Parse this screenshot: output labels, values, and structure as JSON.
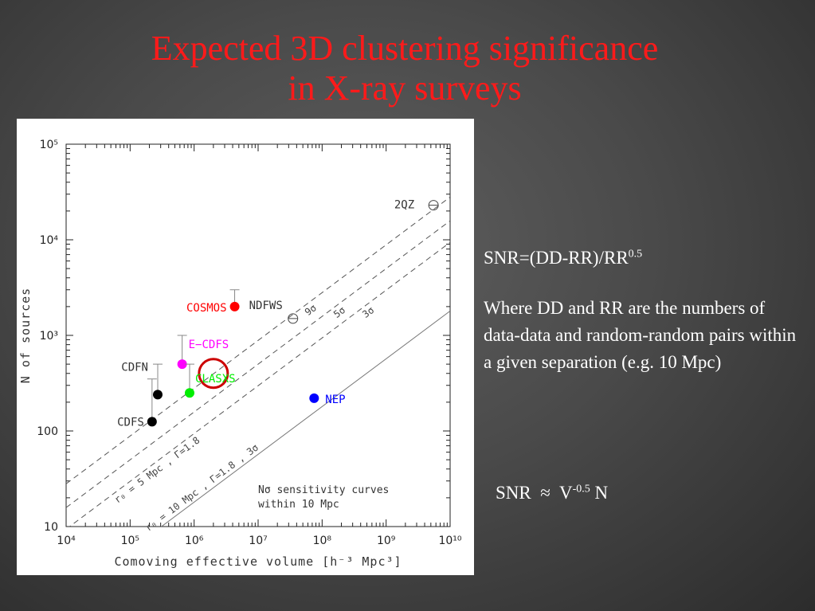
{
  "slide": {
    "title_line1": "Expected 3D clustering significance",
    "title_line2": "in X-ray surveys",
    "snr_formula_base": "SNR=(DD-RR)/RR",
    "snr_formula_exp": "0.5",
    "description": "Where DD and RR are the numbers of data-data and random-random pairs within a given separation (e.g. 10 Mpc)",
    "approx_prefix": "SNR  ≈  V",
    "approx_exp": "-0.5",
    "approx_suffix": " N"
  },
  "colors": {
    "title": "#ff1a1a",
    "text": "#ffffff",
    "cosmos": "#ff0000",
    "ecdfs": "#ff00ff",
    "clasxs": "#00ee00",
    "nep": "#0000ff",
    "highlight_circle": "#cc0000",
    "black_points": "#000000"
  },
  "chart_data": {
    "type": "scatter",
    "xscale": "log",
    "yscale": "log",
    "xlim": [
      10000,
      10000000000
    ],
    "ylim": [
      10,
      100000
    ],
    "xlabel": "Comoving effective volume [h⁻³ Mpc³]",
    "ylabel": "N of sources",
    "x_ticks": [
      {
        "value": 10000,
        "label": "10⁴"
      },
      {
        "value": 100000,
        "label": "10⁵"
      },
      {
        "value": 1000000,
        "label": "10⁶"
      },
      {
        "value": 10000000,
        "label": "10⁷"
      },
      {
        "value": 100000000,
        "label": "10⁸"
      },
      {
        "value": 1000000000,
        "label": "10⁹"
      },
      {
        "value": 10000000000,
        "label": "10¹⁰"
      }
    ],
    "y_ticks": [
      {
        "value": 10,
        "label": "10"
      },
      {
        "value": 100,
        "label": "100"
      },
      {
        "value": 1000,
        "label": "10³"
      },
      {
        "value": 10000,
        "label": "10⁴"
      },
      {
        "value": 100000,
        "label": "10⁵"
      }
    ],
    "surveys": [
      {
        "name": "CDFS",
        "x": 220000,
        "y": 125,
        "y_err_top": 350,
        "color": "black_points",
        "marker": "filled"
      },
      {
        "name": "CDFN",
        "x": 270000,
        "y": 240,
        "y_err_top": 500,
        "color": "black_points",
        "marker": "filled"
      },
      {
        "name": "E−CDFS",
        "x": 650000,
        "y": 500,
        "y_err_top": 1000,
        "color": "ecdfs",
        "marker": "filled"
      },
      {
        "name": "CLASXS",
        "x": 850000,
        "y": 250,
        "y_err_top": 500,
        "color": "clasxs",
        "marker": "filled"
      },
      {
        "name": "COSMOS",
        "x": 4300000,
        "y": 2000,
        "y_err_top": 3000,
        "color": "cosmos",
        "marker": "filled"
      },
      {
        "name": "NEP",
        "x": 75000000,
        "y": 220,
        "color": "nep",
        "marker": "filled"
      },
      {
        "name": "NDFWS",
        "x": 35000000,
        "y": 1500,
        "marker": "theta"
      },
      {
        "name": "2QZ",
        "x": 5500000000,
        "y": 23000,
        "marker": "theta"
      }
    ],
    "sensitivity_lines": [
      {
        "name": "9σ",
        "style": "dashed",
        "slope": 0.5,
        "y_at_1e4": 28
      },
      {
        "name": "5σ",
        "style": "dashed",
        "slope": 0.5,
        "y_at_1e4": 15.8
      },
      {
        "name": "3σ",
        "style": "dashed",
        "slope": 0.5,
        "y_at_1e4": 9.4
      },
      {
        "name": "r₀ = 10 Mpc , Γ=1.8 , 3σ",
        "style": "solid",
        "slope": 0.5,
        "y_at_1e4": 1.8
      }
    ],
    "annotations": {
      "dashed_set_label": "r₀ = 5 Mpc , Γ=1.8",
      "legend_line1": "Nσ sensitivity curves",
      "legend_line2": "within 10 Mpc"
    },
    "highlight_circle": {
      "x": 2000000,
      "y": 400
    }
  }
}
